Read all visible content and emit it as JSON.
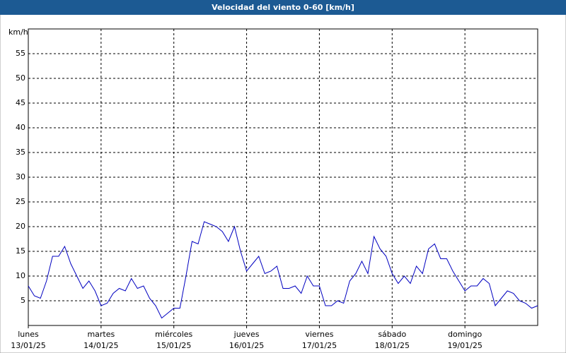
{
  "chart_data": {
    "type": "line",
    "title": "Velocidad del viento 0-60 [km/h]",
    "y_label": "km/h",
    "xlim": [
      0,
      7
    ],
    "xticks": [
      {
        "value": 0,
        "label": "lunes",
        "date": "13/01/25"
      },
      {
        "value": 1,
        "label": "martes",
        "date": "14/01/25"
      },
      {
        "value": 2,
        "label": "miércoles",
        "date": "15/01/25"
      },
      {
        "value": 3,
        "label": "jueves",
        "date": "16/01/25"
      },
      {
        "value": 4,
        "label": "viernes",
        "date": "17/01/25"
      },
      {
        "value": 5,
        "label": "sábado",
        "date": "18/01/25"
      },
      {
        "value": 6,
        "label": "domingo",
        "date": "19/01/25"
      }
    ],
    "ylim": [
      0,
      60
    ],
    "yticks": [
      5,
      10,
      15,
      20,
      25,
      30,
      35,
      40,
      45,
      50,
      55
    ],
    "grid": true,
    "series": [
      {
        "color": "#0000c0",
        "values": [
          8,
          6,
          5.5,
          9,
          14,
          14,
          16,
          12.5,
          10,
          7.5,
          9,
          7,
          4,
          4.5,
          6.5,
          7.5,
          7,
          9.5,
          7.5,
          8,
          5.5,
          4,
          1.5,
          2.5,
          3.5,
          3.5,
          10,
          17,
          16.5,
          21,
          20.5,
          20,
          19,
          17,
          20,
          15,
          11,
          12.5,
          14,
          10.5,
          11,
          12,
          7.5,
          7.5,
          8,
          6.5,
          10,
          8,
          8,
          4,
          4,
          5,
          4.5,
          9,
          10.5,
          13,
          10.5,
          18,
          15.5,
          14,
          10.5,
          8.5,
          10,
          8.5,
          12,
          10.5,
          15.5,
          16.5,
          13.5,
          13.5,
          11,
          9,
          7,
          8,
          8,
          9.5,
          8.5,
          4,
          5.5,
          7,
          6.5,
          5,
          4.5,
          3.5,
          4
        ]
      }
    ]
  }
}
